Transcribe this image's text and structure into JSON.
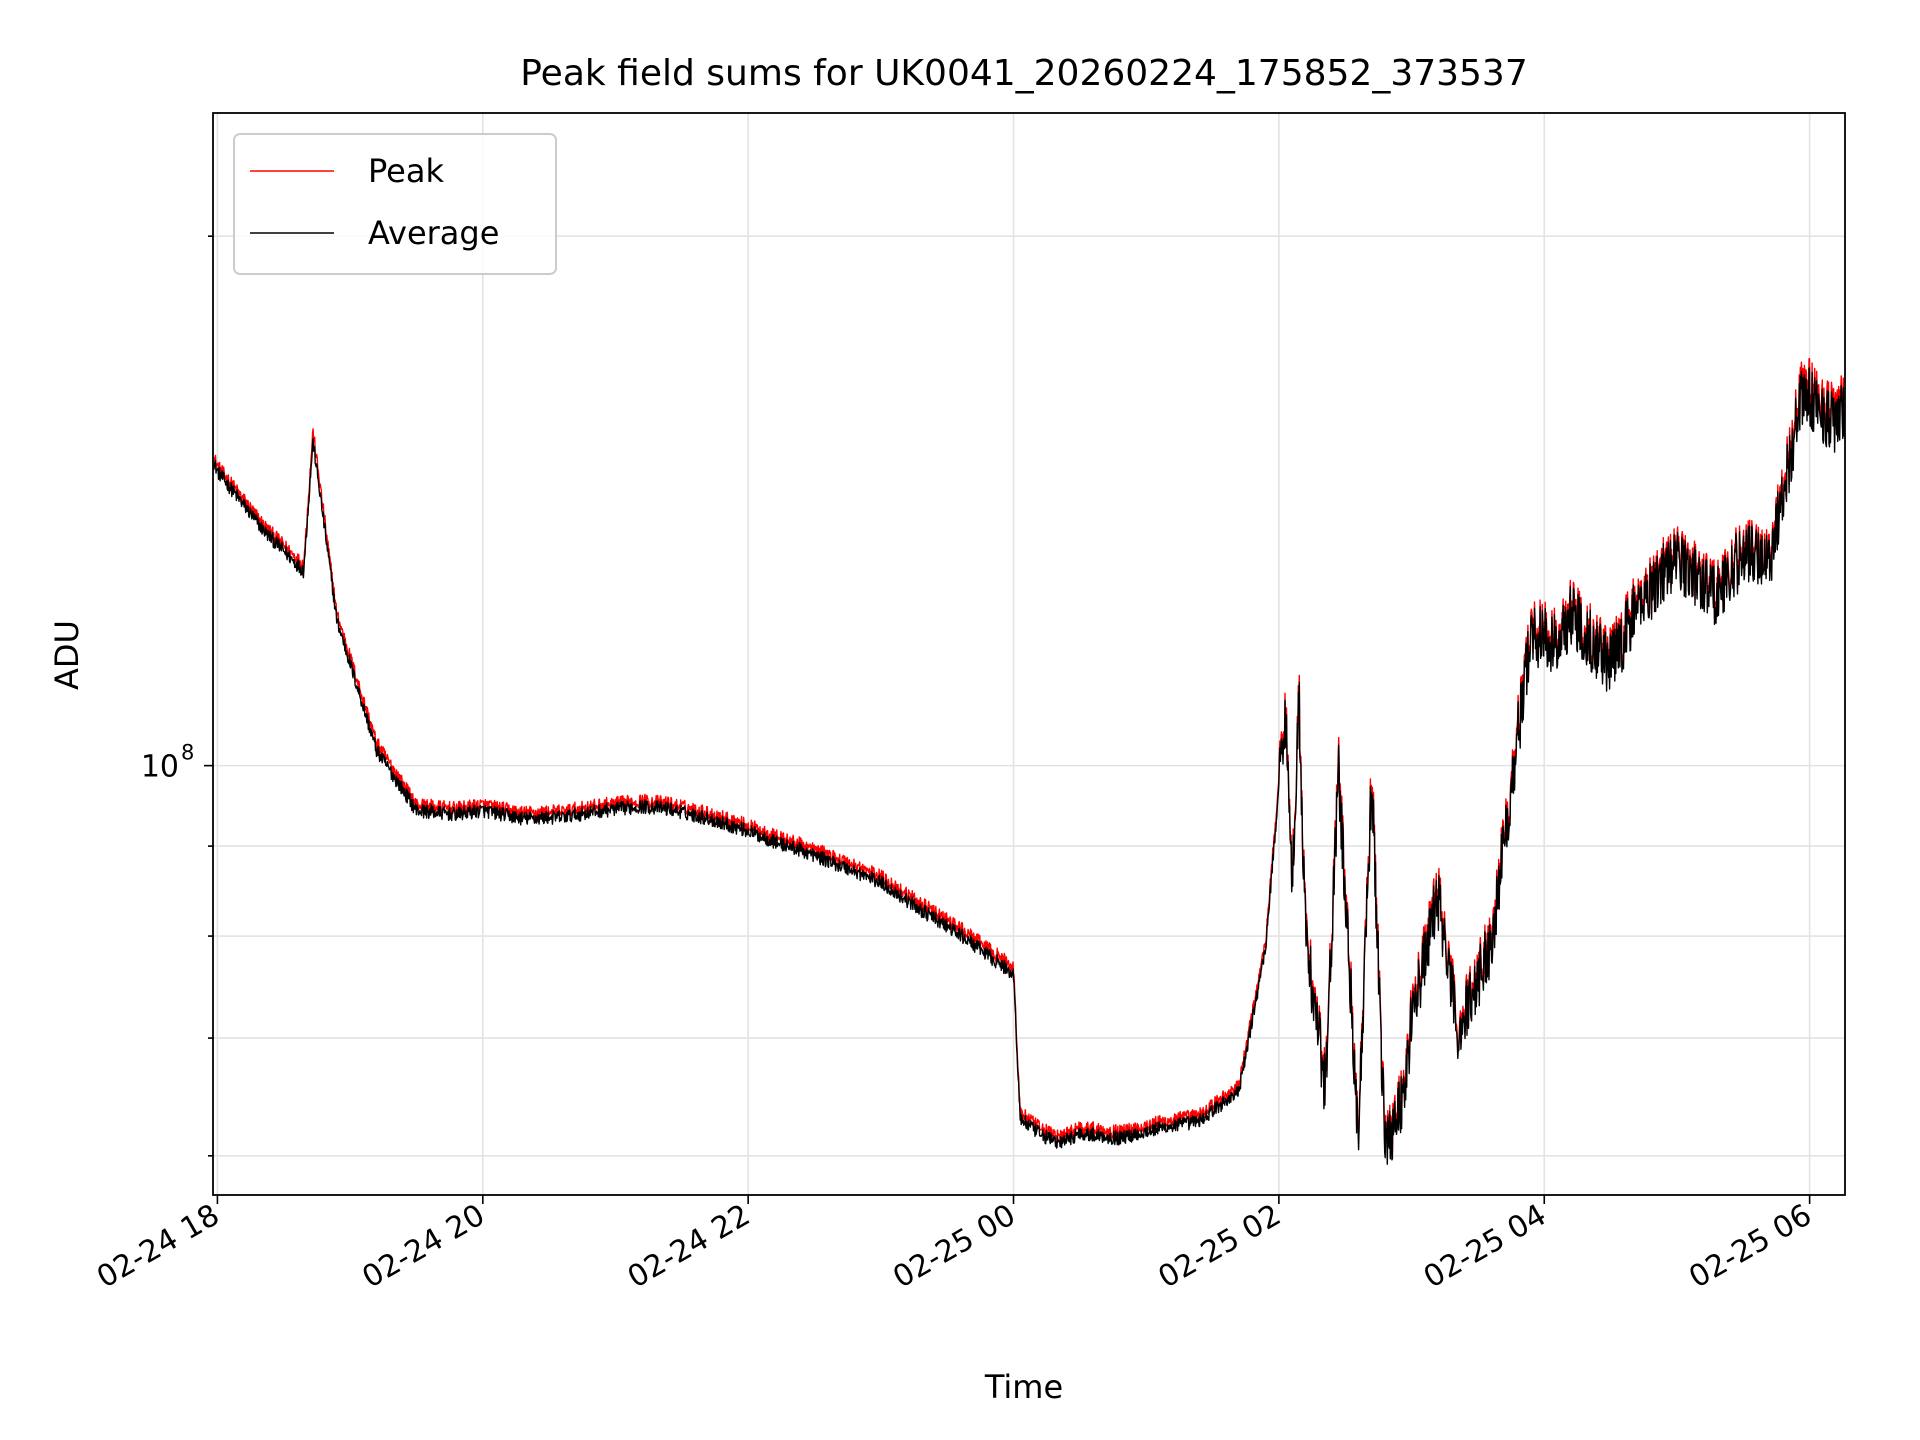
{
  "chart_data": {
    "type": "line",
    "title": "Peak field sums for UK0041_20260224_175852_373537",
    "xlabel": "Time",
    "ylabel": "ADU",
    "x_ticks": [
      "02-24 18",
      "02-24 20",
      "02-24 22",
      "02-25 00",
      "02-25 02",
      "02-25 04",
      "02-25 06"
    ],
    "y_tick_label": "10",
    "y_tick_exponent": "8",
    "y_scale": "log",
    "xlim": [
      "2026-02-24 17:58",
      "2026-02-25 06:16"
    ],
    "ylim": [
      57000000,
      235000000
    ],
    "grid": true,
    "legend_position": "upper-left",
    "x_hours": [
      -0.03,
      0.0,
      0.35,
      0.65,
      0.72,
      0.9,
      1.2,
      1.5,
      1.8,
      2.0,
      2.3,
      2.6,
      2.9,
      3.2,
      3.4,
      3.7,
      4.0,
      4.2,
      4.4,
      4.6,
      4.8,
      5.0,
      5.3,
      5.6,
      5.8,
      6.0,
      6.05,
      6.2,
      6.35,
      6.5,
      6.8,
      7.1,
      7.4,
      7.7,
      7.9,
      8.05,
      8.1,
      8.15,
      8.2,
      8.35,
      8.45,
      8.6,
      8.7,
      8.8,
      8.95,
      9.0,
      9.2,
      9.35,
      9.6,
      9.9,
      10.1,
      10.2,
      10.5,
      10.7,
      10.9,
      11.0,
      11.3,
      11.5,
      11.7,
      11.95,
      12.2,
      12.3
    ],
    "series": [
      {
        "name": "Peak",
        "color": "#ff0000",
        "values": [
          150000000,
          148000000,
          137000000,
          130000000,
          155000000,
          122000000,
          103000000,
          95000000,
          94500000,
          95000000,
          94000000,
          94200000,
          95000000,
          95500000,
          95200000,
          94000000,
          92500000,
          91200000,
          90200000,
          89000000,
          87800000,
          86500000,
          83500000,
          80800000,
          78800000,
          76800000,
          63500000,
          62200000,
          61500000,
          62300000,
          61900000,
          62700000,
          63300000,
          65800000,
          79500000,
          109000000,
          85500000,
          111000000,
          81000000,
          66000000,
          100000000,
          62000000,
          99000000,
          61000000,
          66000000,
          72500000,
          85000000,
          71000000,
          80000000,
          120000000,
          118000000,
          123000000,
          115000000,
          124000000,
          130000000,
          132000000,
          126000000,
          133000000,
          132000000,
          165000000,
          158000000,
          163000000
        ]
      },
      {
        "name": "Average",
        "color": "#000000",
        "values": [
          149000000,
          147000000,
          136000000,
          129000000,
          153000000,
          121000000,
          102000000,
          94300000,
          93800000,
          94300000,
          93300000,
          93500000,
          94300000,
          94800000,
          94500000,
          93300000,
          91800000,
          90500000,
          89500000,
          88300000,
          87100000,
          85800000,
          82800000,
          80100000,
          78100000,
          76100000,
          63000000,
          61700000,
          61000000,
          61800000,
          61400000,
          62200000,
          62800000,
          65300000,
          78800000,
          108000000,
          84800000,
          110000000,
          80300000,
          65500000,
          99000000,
          61500000,
          98000000,
          60500000,
          65500000,
          71800000,
          84200000,
          70400000,
          79300000,
          119000000,
          117000000,
          122000000,
          114000000,
          123000000,
          129000000,
          131000000,
          125000000,
          132000000,
          131000000,
          163000000,
          156000000,
          161000000
        ]
      }
    ]
  }
}
